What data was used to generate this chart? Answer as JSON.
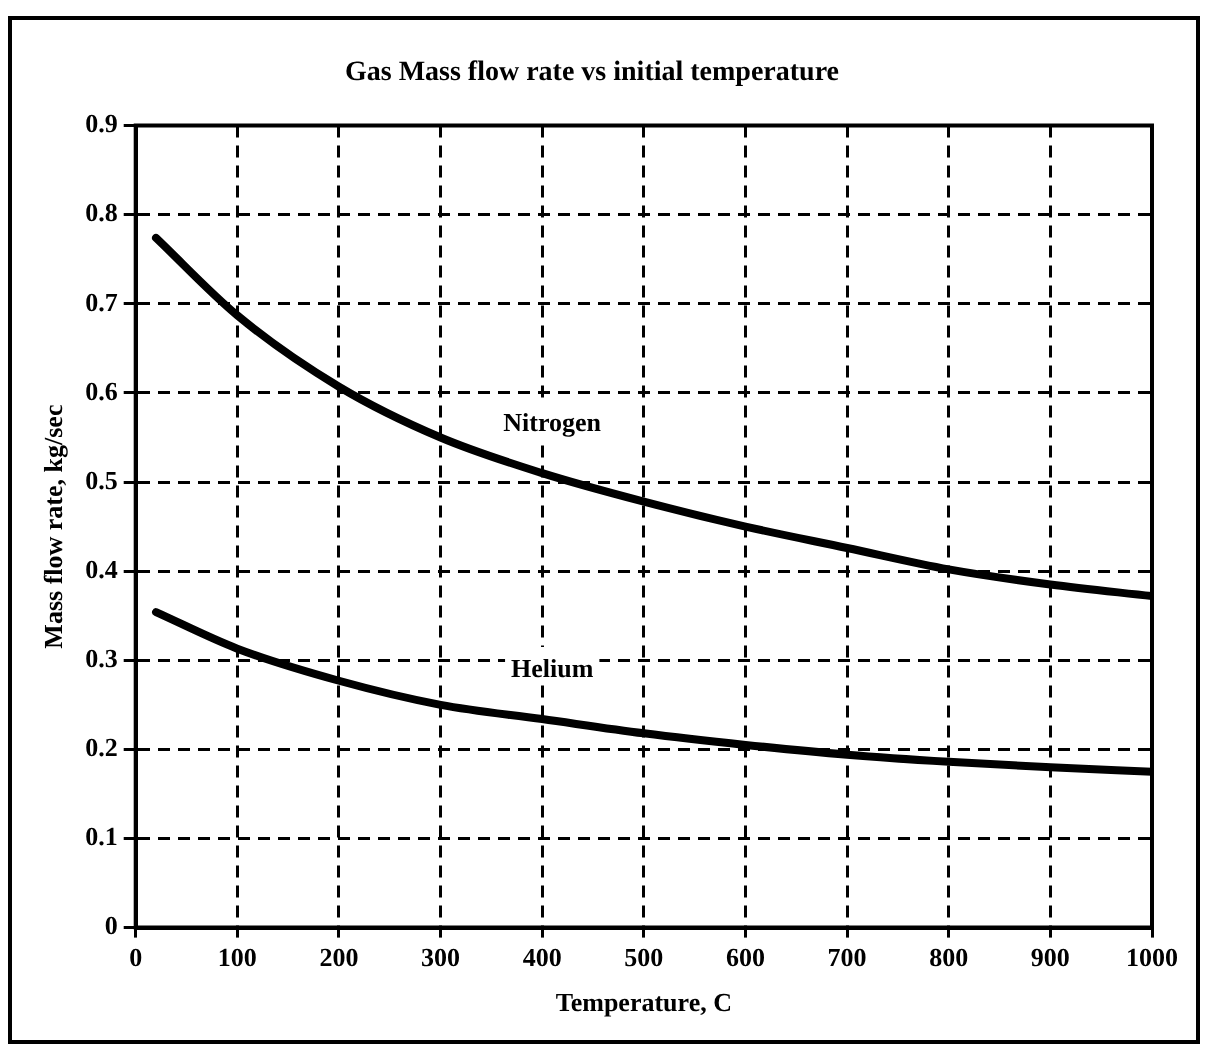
{
  "chart_data": {
    "type": "line",
    "title": "Gas Mass flow rate vs initial temperature",
    "xlabel": "Temperature, C",
    "ylabel": "Mass flow rate, kg/sec",
    "x": [
      20,
      100,
      200,
      300,
      400,
      500,
      600,
      700,
      800,
      900,
      1000
    ],
    "series": [
      {
        "name": "Nitrogen",
        "color": "#000000",
        "values": [
          0.774,
          0.687,
          0.607,
          0.55,
          0.51,
          0.478,
          0.45,
          0.426,
          0.402,
          0.385,
          0.372
        ]
      },
      {
        "name": "Helium",
        "color": "#000000",
        "values": [
          0.354,
          0.313,
          0.277,
          0.25,
          0.234,
          0.218,
          0.205,
          0.194,
          0.186,
          0.18,
          0.175
        ]
      }
    ],
    "xlim": [
      0,
      1000
    ],
    "xticks": [
      0,
      100,
      200,
      300,
      400,
      500,
      600,
      700,
      800,
      900,
      1000
    ],
    "ylim": [
      0,
      0.9
    ],
    "yticks": [
      0,
      0.1,
      0.2,
      0.3,
      0.4,
      0.5,
      0.6,
      0.7,
      0.8,
      0.9
    ],
    "grid": true,
    "legend": false,
    "marker": "none",
    "line_style": "solid"
  }
}
